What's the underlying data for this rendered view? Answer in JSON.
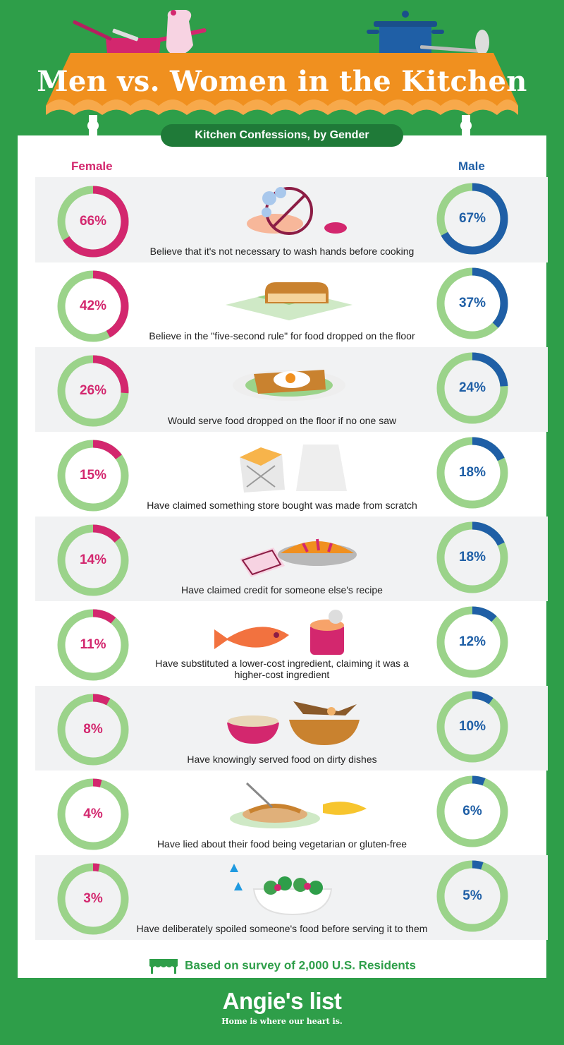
{
  "header": {
    "title": "Men vs. Women in the Kitchen",
    "subtitle": "Kitchen Confessions, by Gender"
  },
  "colors": {
    "background": "#2e9e49",
    "tablecloth": "#f0901f",
    "female": "#d3276e",
    "male": "#1f5fa6",
    "ring": "#9bd38a"
  },
  "chart_data": {
    "type": "donut",
    "title": "Men vs. Women in the Kitchen",
    "subtitle": "Kitchen Confessions, by Gender",
    "unit": "%",
    "series": [
      {
        "name": "Female",
        "values": [
          66,
          42,
          26,
          15,
          14,
          11,
          8,
          4,
          3
        ]
      },
      {
        "name": "Male",
        "values": [
          67,
          37,
          24,
          18,
          18,
          12,
          10,
          6,
          5
        ]
      }
    ],
    "categories": [
      "Believe that it's not necessary to wash hands before cooking",
      "Believe in the \"five-second rule\" for food dropped on the floor",
      "Would serve food dropped on the floor if no one saw",
      "Have claimed something store bought was made from scratch",
      "Have claimed credit for someone else's recipe",
      "Have substituted a lower-cost ingredient, claiming it was a higher-cost ingredient",
      "Have knowingly served food on dirty dishes",
      "Have lied about their food being vegetarian or gluten-free",
      "Have deliberately spoiled someone's food before serving it to them"
    ],
    "illustrations": [
      "hand-washing-icon",
      "toast-on-floor-icon",
      "egg-toast-plate-icon",
      "takeaway-boxes-icon",
      "pie-recipe-icon",
      "fish-can-icon",
      "dirty-dishes-icon",
      "spaghetti-corn-icon",
      "salad-bowl-icon"
    ],
    "ylim": [
      0,
      100
    ]
  },
  "columns": {
    "female": "Female",
    "male": "Male"
  },
  "footer": {
    "note": "Based on survey of 2,000 U.S. Residents",
    "logo": "Angie's list",
    "tagline": "Home is where our heart is."
  }
}
